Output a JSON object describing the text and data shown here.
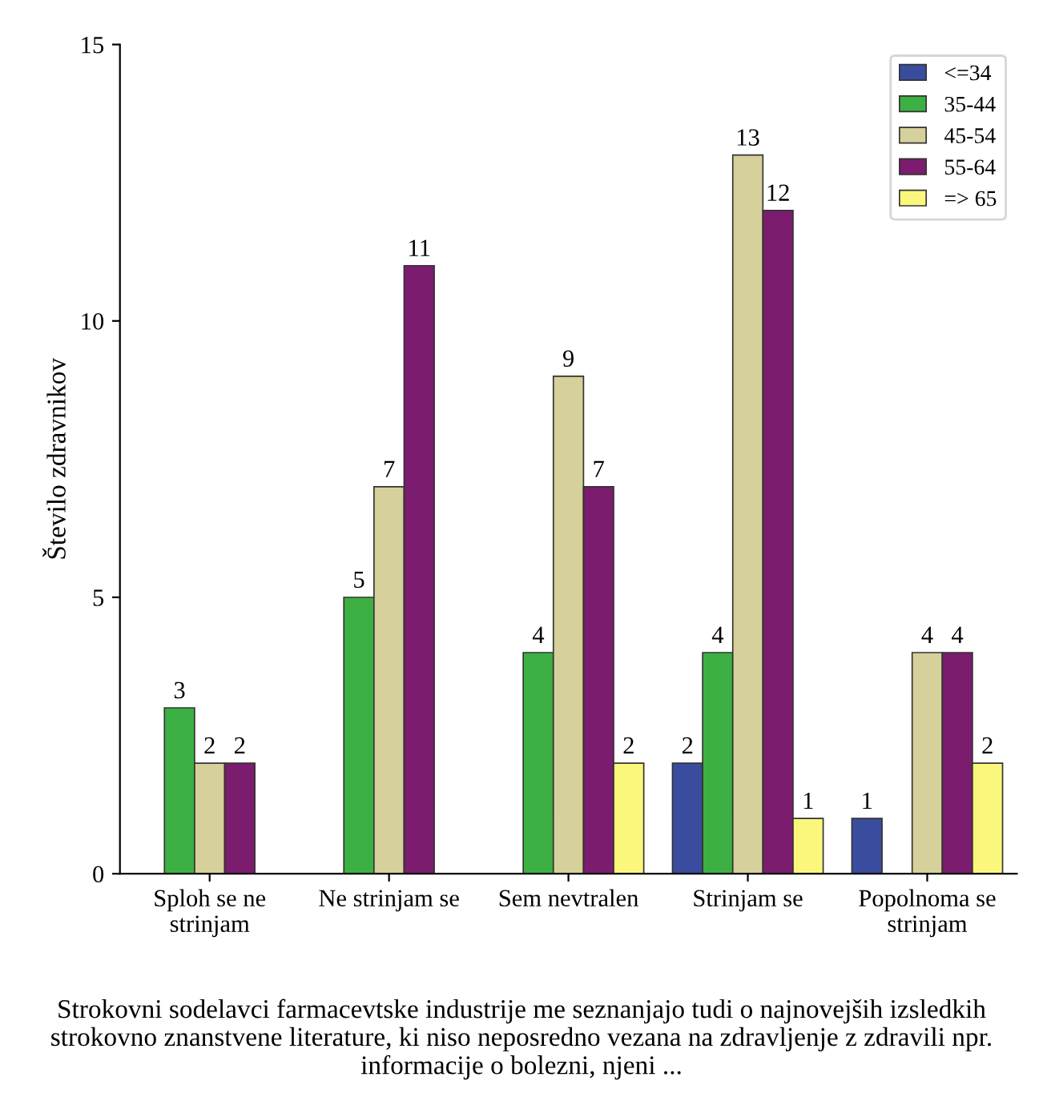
{
  "chart_data": {
    "type": "bar",
    "categories": [
      "Sploh se ne\nstrinjam",
      "Ne strinjam se",
      "Sem nevtralen",
      "Strinjam se",
      "Popolnoma se\nstrinjam"
    ],
    "series": [
      {
        "name": "<=34",
        "color": "#3a4c9e",
        "values": [
          null,
          null,
          null,
          2,
          1
        ]
      },
      {
        "name": "35-44",
        "color": "#3cb043",
        "values": [
          3,
          5,
          4,
          4,
          null
        ]
      },
      {
        "name": "45-54",
        "color": "#d6d09a",
        "values": [
          2,
          7,
          9,
          13,
          4
        ]
      },
      {
        "name": "55-64",
        "color": "#7b1c6e",
        "values": [
          2,
          11,
          7,
          12,
          4
        ]
      },
      {
        "name": "=> 65",
        "color": "#fbf77c",
        "values": [
          null,
          null,
          2,
          1,
          2
        ]
      }
    ],
    "ylim": [
      0,
      15
    ],
    "yticks": [
      0,
      5,
      10,
      15
    ],
    "ylabel": "Število zdravnikov",
    "xlabel": "Strokovni sodelavci farmacevtske industrije me seznanjajo tudi o najnovejših izsledkih strokovno znanstvene literature, ki niso neposredno vezana na zdravljenje z zdravili npr. informacije o bolezni, njeni ...",
    "data_labels": true,
    "legend": "top right",
    "grid": false
  }
}
